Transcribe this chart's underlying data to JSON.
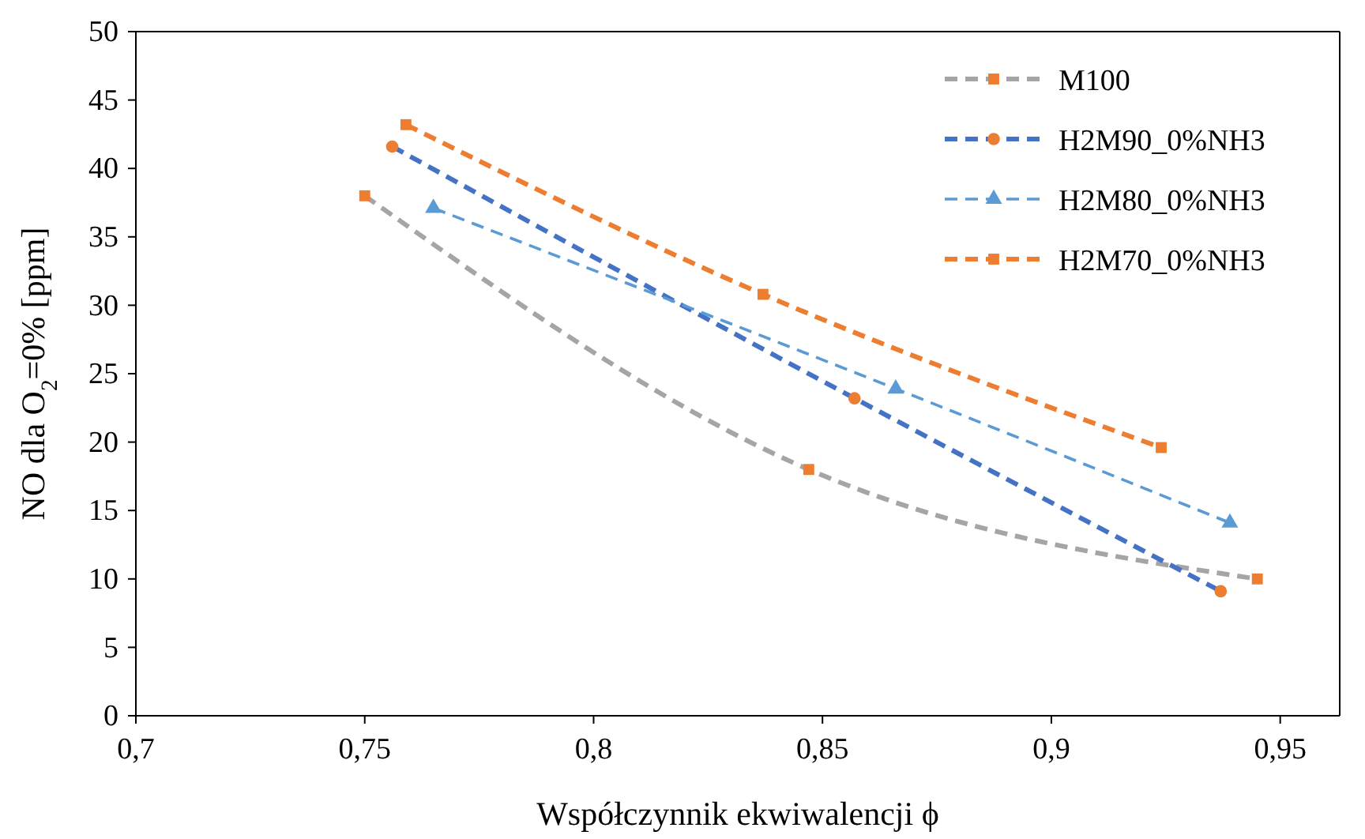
{
  "chart_data": {
    "type": "line",
    "xlabel": "Współczynnik ekwiwalencji ϕ",
    "ylabel": "NO dla O$_{2}$=0% [ppm]",
    "xlim": [
      0.7,
      0.963
    ],
    "xticks": [
      {
        "value": 0.7,
        "label": "0,7"
      },
      {
        "value": 0.75,
        "label": "0,75"
      },
      {
        "value": 0.8,
        "label": "0,8"
      },
      {
        "value": 0.85,
        "label": "0,85"
      },
      {
        "value": 0.9,
        "label": "0,9"
      },
      {
        "value": 0.95,
        "label": "0,95"
      }
    ],
    "ylim": [
      0,
      50
    ],
    "yticks": [
      0,
      5,
      10,
      15,
      20,
      25,
      30,
      35,
      40,
      45,
      50
    ],
    "grid": false,
    "legend": "top right",
    "line_style": "dashed",
    "series": [
      {
        "name": "M100",
        "color": "#a5a5a5",
        "colors": [
          "#ed7d31",
          "#ed7d31",
          "#ed7d31"
        ],
        "marker": "square",
        "x": [
          0.75,
          0.847,
          0.945
        ],
        "values": [
          38,
          18,
          10
        ]
      },
      {
        "name": "H2M90_0%NH3",
        "color": "#4472c4",
        "colors": [
          "#ed7d31",
          "#ed7d31",
          "#ed7d31"
        ],
        "marker": "circle",
        "x": [
          0.756,
          0.857,
          0.937
        ],
        "values": [
          41.6,
          23.2,
          9.1
        ]
      },
      {
        "name": "H2M80_0%NH3",
        "color": "#5b9bd5",
        "colors": [
          "#5b9bd5",
          "#5b9bd5",
          "#5b9bd5"
        ],
        "marker": "triangle",
        "x": [
          0.765,
          0.866,
          0.939
        ],
        "values": [
          37.1,
          23.9,
          14.1
        ]
      },
      {
        "name": "H2M70_0%NH3",
        "color": "#ed7d31",
        "colors": [
          "#ed7d31",
          "#ed7d31",
          "#ed7d31"
        ],
        "marker": "square",
        "x": [
          0.759,
          0.837,
          0.924
        ],
        "values": [
          43.2,
          30.8,
          19.6
        ]
      }
    ]
  }
}
